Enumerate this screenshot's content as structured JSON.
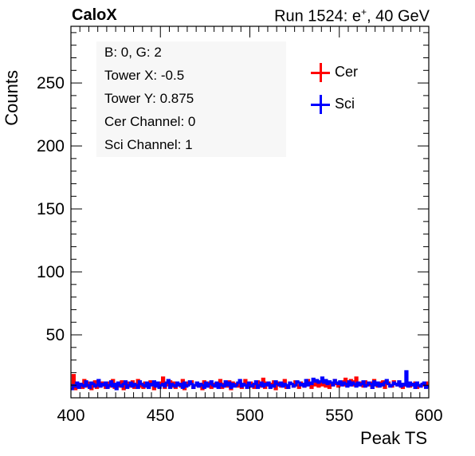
{
  "header": {
    "left_title": "CaloX",
    "right_prefix": "Run 1524: e",
    "right_sup": "+",
    "right_suffix": ", 40 GeV"
  },
  "info_box": {
    "lines": [
      "B: 0, G: 2",
      "Tower X: -0.5",
      "Tower Y: 0.875",
      "Cer Channel: 0",
      "Sci Channel: 1"
    ]
  },
  "legend": [
    {
      "label": "Cer",
      "color": "#ff0000"
    },
    {
      "label": "Sci",
      "color": "#0000ff"
    }
  ],
  "chart_data": {
    "type": "line",
    "xlabel": "Peak TS",
    "ylabel": "Counts",
    "xlim": [
      400,
      600
    ],
    "ylim": [
      0,
      295
    ],
    "x_ticks": [
      400,
      450,
      500,
      550,
      600
    ],
    "y_ticks": [
      50,
      100,
      150,
      200,
      250
    ],
    "bin_width": 1,
    "series": [
      {
        "name": "Cer",
        "color": "#ff0000",
        "x_start": 400,
        "values": [
          10,
          18,
          7,
          12,
          9,
          11,
          8,
          14,
          10,
          9,
          12,
          7,
          10,
          13,
          8,
          11,
          9,
          12,
          10,
          8,
          12,
          9,
          11,
          14,
          8,
          10,
          12,
          9,
          13,
          7,
          10,
          12,
          11,
          9,
          13,
          8,
          10,
          14,
          9,
          11,
          8,
          12,
          10,
          9,
          13,
          11,
          7,
          12,
          10,
          9,
          12,
          16,
          8,
          11,
          10,
          13,
          9,
          12,
          8,
          11,
          10,
          9,
          14,
          7,
          12,
          10,
          11,
          13,
          8,
          10,
          12,
          9,
          11,
          7,
          13,
          10,
          9,
          12,
          8,
          11,
          10,
          12,
          9,
          14,
          8,
          11,
          10,
          9,
          13,
          7,
          12,
          10,
          11,
          9,
          12,
          8,
          10,
          14,
          11,
          9,
          12,
          10,
          8,
          11,
          13,
          9,
          10,
          15,
          8,
          12,
          10,
          9,
          11,
          13,
          7,
          10,
          12,
          9,
          11,
          14,
          8,
          10,
          12,
          11,
          9,
          13,
          10,
          8,
          12,
          11,
          9,
          10,
          14,
          12,
          8,
          11,
          10,
          13,
          9,
          12,
          10,
          11,
          9,
          13,
          8,
          12,
          10,
          14,
          11,
          9,
          12,
          13,
          10,
          15,
          11,
          12,
          14,
          10,
          13,
          16,
          11,
          12,
          10,
          9,
          13,
          11,
          10,
          12,
          8,
          14,
          11,
          9,
          12,
          10,
          13,
          8,
          11,
          12,
          10,
          9,
          13,
          11,
          10,
          12,
          9,
          8,
          11,
          10,
          12,
          9,
          10,
          11,
          12,
          8,
          10,
          9,
          11,
          10,
          12,
          9
        ]
      },
      {
        "name": "Sci",
        "color": "#0000ff",
        "x_start": 400,
        "values": [
          7,
          10,
          9,
          12,
          8,
          11,
          10,
          9,
          13,
          10,
          8,
          12,
          11,
          9,
          10,
          14,
          9,
          11,
          10,
          12,
          8,
          10,
          13,
          9,
          11,
          7,
          12,
          10,
          9,
          11,
          13,
          8,
          10,
          12,
          9,
          11,
          10,
          8,
          13,
          11,
          10,
          9,
          12,
          8,
          11,
          10,
          13,
          9,
          12,
          8,
          10,
          11,
          9,
          12,
          14,
          8,
          11,
          10,
          9,
          12,
          10,
          11,
          8,
          12,
          9,
          10,
          13,
          11,
          8,
          10,
          12,
          9,
          11,
          10,
          8,
          12,
          9,
          11,
          13,
          10,
          9,
          12,
          8,
          11,
          10,
          9,
          13,
          10,
          12,
          8,
          11,
          9,
          10,
          12,
          14,
          9,
          11,
          10,
          8,
          12,
          10,
          9,
          11,
          13,
          8,
          10,
          12,
          9,
          11,
          10,
          12,
          8,
          10,
          9,
          13,
          11,
          10,
          12,
          9,
          11,
          10,
          8,
          12,
          11,
          9,
          10,
          13,
          12,
          10,
          11,
          9,
          14,
          10,
          12,
          11,
          15,
          13,
          14,
          12,
          13,
          16,
          12,
          14,
          11,
          13,
          12,
          10,
          14,
          12,
          11,
          13,
          10,
          12,
          11,
          9,
          13,
          10,
          12,
          11,
          9,
          12,
          10,
          11,
          13,
          9,
          10,
          12,
          11,
          8,
          13,
          10,
          12,
          9,
          11,
          10,
          12,
          14,
          11,
          9,
          10,
          12,
          11,
          10,
          13,
          9,
          11,
          10,
          21,
          9,
          12,
          10,
          11,
          8,
          12,
          10,
          9,
          11,
          12,
          8,
          9
        ]
      }
    ]
  }
}
